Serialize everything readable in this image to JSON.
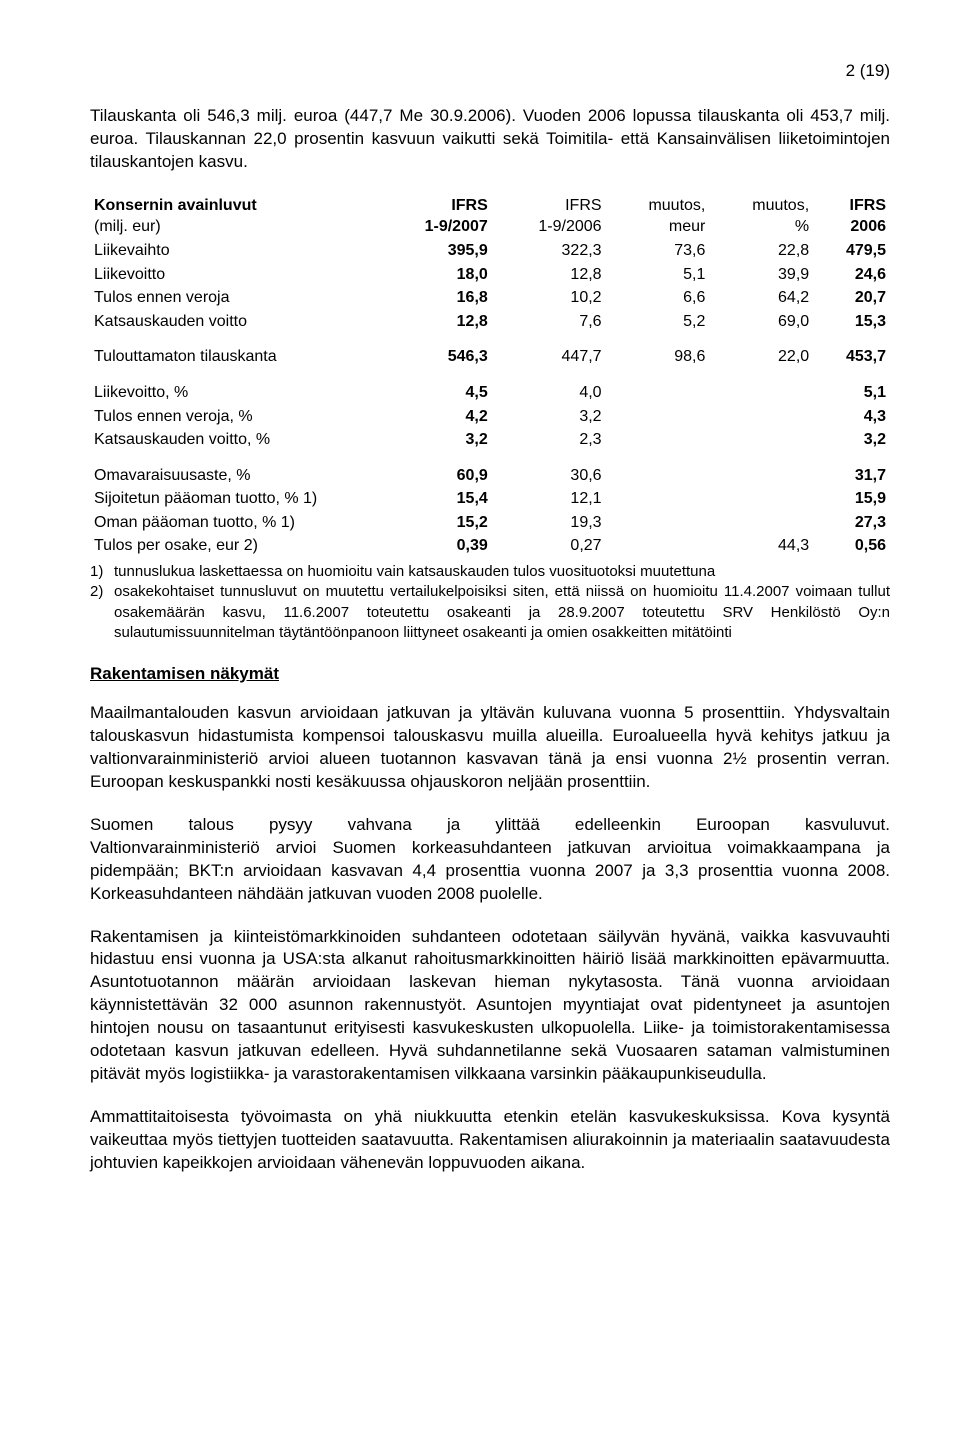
{
  "pagenum": "2 (19)",
  "intro": "Tilauskanta oli 546,3 milj. euroa (447,7 Me 30.9.2006). Vuoden 2006 lopussa tilauskanta oli 453,7 milj. euroa. Tilauskannan 22,0 prosentin kasvuun vaikutti sekä Toimitila- että Kansainvälisen liiketoimintojen tilauskantojen kasvu.",
  "table": {
    "header": {
      "c0a": "Konsernin avainluvut",
      "c0b": "(milj. eur)",
      "c1a": "IFRS",
      "c1b": "1-9/2007",
      "c2a": "IFRS",
      "c2b": "1-9/2006",
      "c3a": "muutos,",
      "c3b": "meur",
      "c4a": "muutos,",
      "c4b": "%",
      "c5a": "IFRS",
      "c5b": "2006"
    },
    "rows": [
      {
        "label": "Liikevaihto",
        "c1": "395,9",
        "c2": "322,3",
        "c3": "73,6",
        "c4": "22,8",
        "c5": "479,5",
        "b": [
          "c1",
          "c5"
        ]
      },
      {
        "label": "Liikevoitto",
        "c1": "18,0",
        "c2": "12,8",
        "c3": "5,1",
        "c4": "39,9",
        "c5": "24,6",
        "b": [
          "c1",
          "c5"
        ]
      },
      {
        "label": "Tulos ennen veroja",
        "c1": "16,8",
        "c2": "10,2",
        "c3": "6,6",
        "c4": "64,2",
        "c5": "20,7",
        "b": [
          "c1",
          "c5"
        ]
      },
      {
        "label": "Katsauskauden voitto",
        "c1": "12,8",
        "c2": "7,6",
        "c3": "5,2",
        "c4": "69,0",
        "c5": "15,3",
        "b": [
          "c1",
          "c5"
        ]
      },
      {
        "spacer": true
      },
      {
        "label": "Tulouttamaton tilauskanta",
        "c1": "546,3",
        "c2": "447,7",
        "c3": "98,6",
        "c4": "22,0",
        "c5": "453,7",
        "b": [
          "c1",
          "c5"
        ]
      },
      {
        "spacer": true
      },
      {
        "label": "Liikevoitto, %",
        "c1": "4,5",
        "c2": "4,0",
        "c3": "",
        "c4": "",
        "c5": "5,1",
        "b": [
          "c1",
          "c5"
        ]
      },
      {
        "label": "Tulos ennen veroja, %",
        "c1": "4,2",
        "c2": "3,2",
        "c3": "",
        "c4": "",
        "c5": "4,3",
        "b": [
          "c1",
          "c5"
        ]
      },
      {
        "label": "Katsauskauden voitto, %",
        "c1": "3,2",
        "c2": "2,3",
        "c3": "",
        "c4": "",
        "c5": "3,2",
        "b": [
          "c1",
          "c5"
        ]
      },
      {
        "spacer": true
      },
      {
        "label": "Omavaraisuusaste, %",
        "c1": "60,9",
        "c2": "30,6",
        "c3": "",
        "c4": "",
        "c5": "31,7",
        "b": [
          "c1",
          "c5"
        ]
      },
      {
        "label": "Sijoitetun pääoman tuotto, % 1)",
        "c1": "15,4",
        "c2": "12,1",
        "c3": "",
        "c4": "",
        "c5": "15,9",
        "b": [
          "c1",
          "c5"
        ]
      },
      {
        "label": "Oman pääoman tuotto, % 1)",
        "c1": "15,2",
        "c2": "19,3",
        "c3": "",
        "c4": "",
        "c5": "27,3",
        "b": [
          "c1",
          "c5"
        ]
      },
      {
        "label": "Tulos per osake, eur 2)",
        "c1": "0,39",
        "c2": "0,27",
        "c3": "",
        "c4": "44,3",
        "c5": "0,56",
        "b": [
          "c1",
          "c5"
        ]
      }
    ]
  },
  "footnotes": [
    {
      "n": "1)",
      "t": "tunnuslukua laskettaessa on huomioitu vain katsauskauden tulos vuosituotoksi muutettuna"
    },
    {
      "n": "2)",
      "t": "osakekohtaiset tunnusluvut on muutettu vertailukelpoisiksi siten, että niissä on huomioitu 11.4.2007 voimaan tullut osakemäärän kasvu, 11.6.2007 toteutettu osakeanti ja 28.9.2007 toteutettu SRV Henkilöstö Oy:n sulautumissuunnitelman täytäntöönpanoon liittyneet osakeanti ja omien osakkeitten mitätöinti"
    }
  ],
  "heading": "Rakentamisen näkymät",
  "p1": "Maailmantalouden kasvun arvioidaan jatkuvan ja yltävän kuluvana vuonna 5 prosenttiin. Yhdysvaltain talouskasvun hidastumista kompensoi talouskasvu muilla alueilla. Euroalueella hyvä kehitys jatkuu ja valtionvarainministeriö arvioi alueen tuotannon kasvavan tänä ja ensi vuonna 2½ prosentin verran. Euroopan keskuspankki nosti kesäkuussa ohjauskoron neljään prosenttiin.",
  "p2a": "Suomen   talous   pysyy   vahvana   ja   ylittää   edelleenkin   Euroopan   kasvuluvut.",
  "p2b": "Valtionvarainministeriö arvioi Suomen korkeasuhdanteen jatkuvan arvioitua voimakkaampana ja pidempään; BKT:n arvioidaan kasvavan 4,4 prosenttia vuonna 2007 ja 3,3 prosenttia vuonna 2008. Korkeasuhdanteen nähdään jatkuvan vuoden 2008 puolelle.",
  "p3": "Rakentamisen ja kiinteistömarkkinoiden suhdanteen odotetaan säilyvän hyvänä, vaikka kasvuvauhti hidastuu ensi vuonna ja USA:sta alkanut rahoitusmarkkinoitten häiriö lisää markkinoitten epävarmuutta. Asuntotuotannon määrän arvioidaan laskevan hieman nykytasosta. Tänä vuonna arvioidaan käynnistettävän 32 000 asunnon rakennustyöt. Asuntojen myyntiajat ovat pidentyneet ja asuntojen hintojen nousu on tasaantunut erityisesti kasvukeskusten ulkopuolella. Liike- ja toimistorakentamisessa odotetaan kasvun jatkuvan edelleen. Hyvä suhdannetilanne sekä Vuosaaren sataman valmistuminen pitävät myös logistiikka- ja varastorakentamisen vilkkaana varsinkin pääkaupunkiseudulla.",
  "p4": "Ammattitaitoisesta työvoimasta on yhä niukkuutta etenkin etelän kasvukeskuksissa. Kova kysyntä vaikeuttaa myös tiettyjen tuotteiden saatavuutta. Rakentamisen aliurakoinnin ja materiaalin saatavuudesta johtuvien kapeikkojen arvioidaan vähenevän loppuvuoden aikana."
}
